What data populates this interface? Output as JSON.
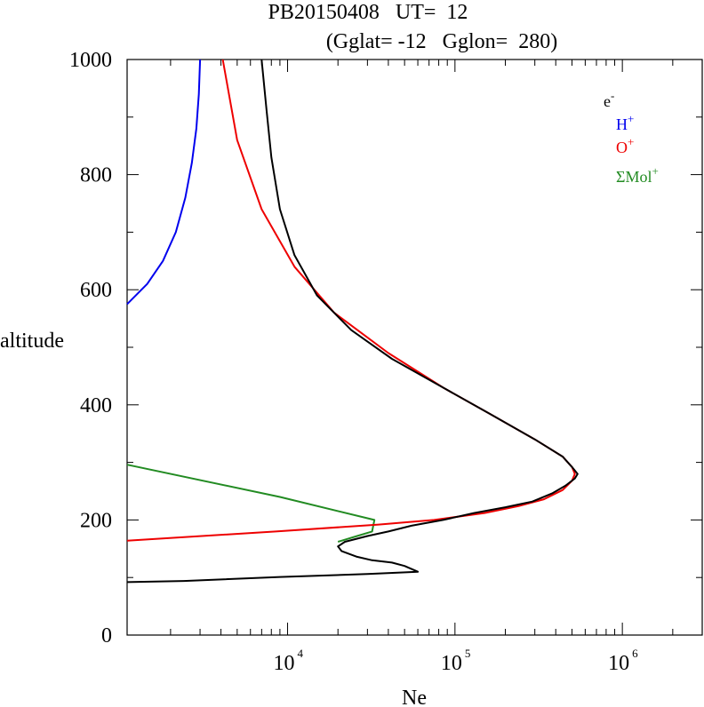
{
  "chart_data": {
    "type": "line",
    "title_line1": "PB20150408   UT=  12",
    "title_line2": "(Gglat= -12   Gglon=  280)",
    "xlabel": "Ne",
    "ylabel": "altitude",
    "x_scale": "log",
    "xlim": [
      1100,
      3000000
    ],
    "ylim": [
      0,
      1000
    ],
    "x_ticks": [
      {
        "base": "10",
        "exp": "4",
        "value": 10000
      },
      {
        "base": "10",
        "exp": "5",
        "value": 100000
      },
      {
        "base": "10",
        "exp": "6",
        "value": 1000000
      }
    ],
    "y_ticks": [
      "0",
      "200",
      "400",
      "600",
      "800",
      "1000"
    ],
    "grid": false,
    "legend_position": "top-right",
    "series": [
      {
        "name": "e-",
        "legend_base": "e",
        "legend_sup": "-",
        "color": "#000000",
        "points": [
          [
            1100,
            92
          ],
          [
            2400,
            94
          ],
          [
            9000,
            101
          ],
          [
            30000,
            106
          ],
          [
            60000,
            110
          ],
          [
            50000,
            120
          ],
          [
            42000,
            126
          ],
          [
            32000,
            130
          ],
          [
            26000,
            136
          ],
          [
            21000,
            146
          ],
          [
            20000,
            154
          ],
          [
            22000,
            162
          ],
          [
            30000,
            172
          ],
          [
            40000,
            180
          ],
          [
            55000,
            190
          ],
          [
            85000,
            200
          ],
          [
            130000,
            212
          ],
          [
            200000,
            222
          ],
          [
            290000,
            232
          ],
          [
            380000,
            246
          ],
          [
            460000,
            260
          ],
          [
            520000,
            272
          ],
          [
            540000,
            280
          ],
          [
            500000,
            292
          ],
          [
            440000,
            310
          ],
          [
            300000,
            340
          ],
          [
            160000,
            385
          ],
          [
            85000,
            430
          ],
          [
            42000,
            480
          ],
          [
            24000,
            530
          ],
          [
            15000,
            590
          ],
          [
            11000,
            660
          ],
          [
            9000,
            740
          ],
          [
            8000,
            830
          ],
          [
            7500,
            910
          ],
          [
            7000,
            1000
          ]
        ]
      },
      {
        "name": "H+",
        "legend_base": "H",
        "legend_sup": "+",
        "color": "#0000ee",
        "points": [
          [
            1100,
            575
          ],
          [
            1450,
            610
          ],
          [
            1800,
            650
          ],
          [
            2150,
            700
          ],
          [
            2450,
            760
          ],
          [
            2680,
            820
          ],
          [
            2850,
            880
          ],
          [
            2950,
            940
          ],
          [
            3000,
            1000
          ]
        ]
      },
      {
        "name": "O+",
        "legend_base": "O",
        "legend_sup": "+",
        "color": "#ee0000",
        "points": [
          [
            1100,
            164
          ],
          [
            8500,
            180
          ],
          [
            35000,
            192
          ],
          [
            75000,
            200
          ],
          [
            150000,
            212
          ],
          [
            240000,
            224
          ],
          [
            340000,
            236
          ],
          [
            440000,
            252
          ],
          [
            500000,
            268
          ],
          [
            520000,
            280
          ],
          [
            500000,
            292
          ],
          [
            440000,
            310
          ],
          [
            300000,
            340
          ],
          [
            160000,
            385
          ],
          [
            85000,
            430
          ],
          [
            40000,
            490
          ],
          [
            19000,
            560
          ],
          [
            11000,
            640
          ],
          [
            7000,
            740
          ],
          [
            5000,
            860
          ],
          [
            4100,
            1000
          ]
        ]
      },
      {
        "name": "ΣMol+",
        "legend_base": "ΣMol",
        "legend_sup": "+",
        "color": "#228b22",
        "points": [
          [
            1100,
            296
          ],
          [
            9000,
            240
          ],
          [
            33000,
            200
          ],
          [
            32000,
            180
          ],
          [
            26000,
            172
          ],
          [
            20000,
            162
          ]
        ]
      }
    ]
  }
}
